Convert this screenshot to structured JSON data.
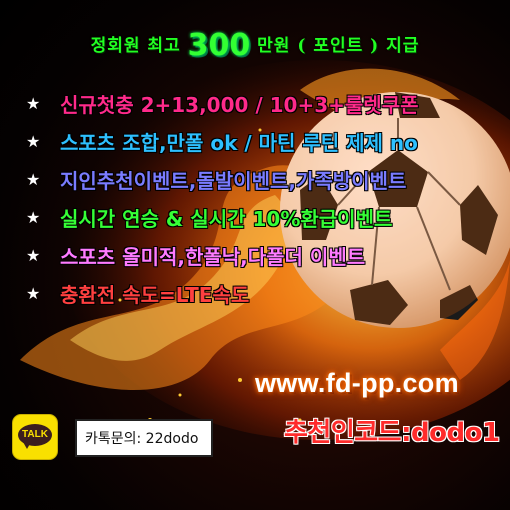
{
  "header": {
    "title_pre": "정회원 최고",
    "title_big": "300",
    "title_post": "만원 ( 포인트 ) 지급"
  },
  "bullets": [
    {
      "star": "★",
      "text": "신규첫충 2+13,000 / 10+3+룰렛쿠폰"
    },
    {
      "star": "★",
      "text": "스포츠 조합,만폴 ok / 마틴 루틴 제제 no"
    },
    {
      "star": "★",
      "text": "지인추천이벤트,돌발이벤트,가족방이벤트"
    },
    {
      "star": "★",
      "text": "실시간 연승 & 실시간 10%환급이벤트"
    },
    {
      "star": "★",
      "text": "스포츠 올미적,한폴낙,다폴더 이벤트"
    },
    {
      "star": "★",
      "text": "충환전 속도=LTE속도"
    }
  ],
  "site_url": "www.fd-pp.com",
  "kakao": {
    "icon_label": "TALK",
    "contact": "카톡문의: 22dodo"
  },
  "referral_code": "추천인코드:dodo1",
  "colors": {
    "title": "#22ff22",
    "bullet_colors": [
      "#ff2a8a",
      "#2ec0ff",
      "#7a7cff",
      "#36ff36",
      "#ff7bff",
      "#ff4040"
    ],
    "url_glow": "#ff7a00",
    "kakao_yellow": "#f9e000",
    "referral": "#ff2b2b"
  }
}
